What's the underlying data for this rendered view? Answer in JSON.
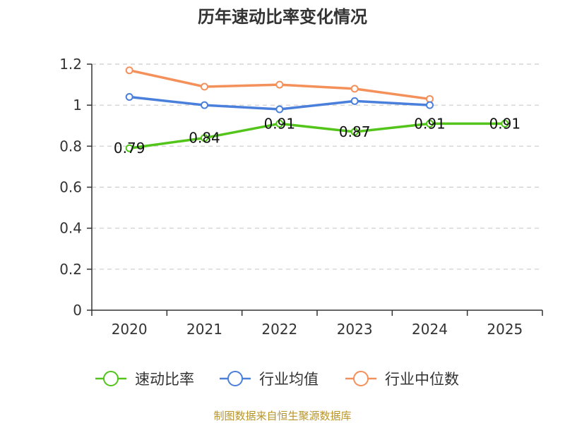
{
  "chart_data": {
    "type": "line",
    "title": "历年速动比率变化情况",
    "categories": [
      "2020",
      "2021",
      "2022",
      "2023",
      "2024",
      "2025"
    ],
    "ylim": [
      0,
      1.2
    ],
    "yticks": [
      "0",
      "0.2",
      "0.4",
      "0.6",
      "0.8",
      "1",
      "1.2"
    ],
    "ytick_values": [
      0,
      0.2,
      0.4,
      0.6,
      0.8,
      1.0,
      1.2
    ],
    "grid": true,
    "legend_position": "bottom",
    "series": [
      {
        "name": "速动比率",
        "color": "#52c41a",
        "values": [
          0.79,
          0.84,
          0.91,
          0.87,
          0.91,
          0.91
        ],
        "labels": [
          "0.79",
          "0.84",
          "0.91",
          "0.87",
          "0.91",
          "0.91"
        ],
        "show_labels": true
      },
      {
        "name": "行业均值",
        "color": "#4a7fdb",
        "values": [
          1.04,
          1.0,
          0.98,
          1.02,
          1.0,
          null
        ],
        "show_labels": false
      },
      {
        "name": "行业中位数",
        "color": "#f4905a",
        "values": [
          1.17,
          1.09,
          1.1,
          1.08,
          1.03,
          null
        ],
        "show_labels": false
      }
    ]
  },
  "source_text": "制图数据来自恒生聚源数据库"
}
